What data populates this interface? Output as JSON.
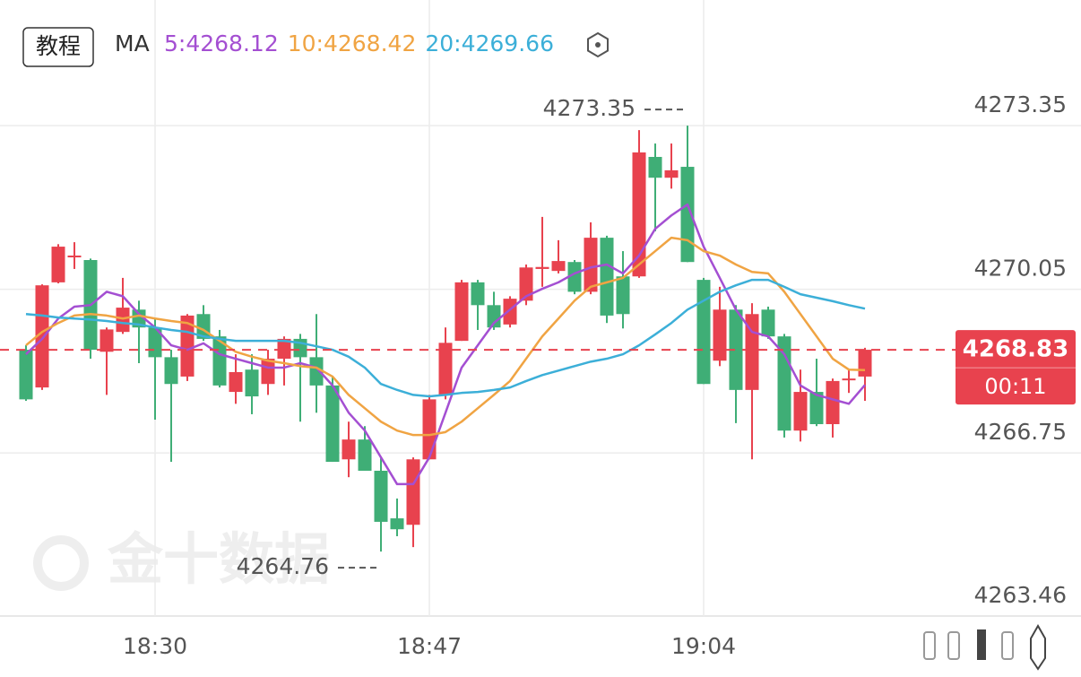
{
  "chart_data": {
    "type": "candlestick",
    "button": "教程",
    "indicator": "MA",
    "watermark": "金十数据",
    "countdown": "00:11",
    "up_color": "#e8424e",
    "down_color": "#3fae76",
    "categories": [
      null,
      null,
      null,
      null,
      null,
      null,
      null,
      null,
      "18:30",
      null,
      null,
      null,
      null,
      null,
      null,
      null,
      null,
      null,
      null,
      null,
      null,
      null,
      null,
      null,
      null,
      "18:47",
      null,
      null,
      null,
      null,
      null,
      null,
      null,
      null,
      null,
      null,
      null,
      null,
      null,
      null,
      null,
      null,
      "19:04",
      null,
      null,
      null,
      null,
      null,
      null,
      null,
      null,
      null,
      null
    ],
    "open": [
      4268.83,
      4268.07,
      4270.19,
      4270.7,
      4270.64,
      4268.79,
      4269.19,
      4269.64,
      4269.28,
      4268.68,
      4268.29,
      4269.55,
      4269.1,
      4267.98,
      4268.43,
      4268.14,
      4268.65,
      4269.05,
      4268.68,
      4268.11,
      4266.62,
      4267.02,
      4266.39,
      4265.43,
      4265.3,
      4266.62,
      4267.92,
      4269.01,
      4270.19,
      4269.73,
      4269.34,
      4269.82,
      4270.46,
      4270.42,
      4270.6,
      4270.0,
      4271.09,
      4270.31,
      4270.31,
      4272.72,
      4272.3,
      4272.52,
      4270.24,
      4268.61,
      4269.64,
      4268.02,
      4269.64,
      4269.1,
      4267.2,
      4267.98,
      4267.33,
      4268.23,
      4268.29
    ],
    "high": [
      4268.92,
      4270.15,
      4270.96,
      4271.0,
      4270.67,
      4269.28,
      4270.28,
      4269.82,
      4269.46,
      4268.83,
      4269.55,
      4269.73,
      4269.23,
      4268.74,
      4268.74,
      4268.83,
      4269.1,
      4269.15,
      4269.55,
      4268.29,
      4267.38,
      4267.29,
      4266.66,
      4265.83,
      4266.66,
      4267.92,
      4269.28,
      4270.24,
      4270.24,
      4270.0,
      4269.91,
      4270.55,
      4271.51,
      4271.04,
      4270.64,
      4271.4,
      4271.13,
      4270.82,
      4273.26,
      4272.99,
      4272.99,
      4273.35,
      4270.28,
      4270.1,
      4269.73,
      4269.77,
      4269.7,
      4269.15,
      4268.43,
      4268.65,
      4268.25,
      4268.43,
      4268.87
    ],
    "low": [
      4267.8,
      4268.02,
      4270.17,
      4270.46,
      4268.65,
      4267.92,
      4269.15,
      4268.56,
      4267.42,
      4266.57,
      4268.2,
      4269.01,
      4268.07,
      4267.74,
      4267.53,
      4267.92,
      4268.11,
      4267.38,
      4267.56,
      4266.57,
      4266.26,
      4266.39,
      4264.76,
      4265.07,
      4264.85,
      4266.62,
      4267.83,
      4269.01,
      4269.23,
      4269.23,
      4269.28,
      4269.73,
      4270.1,
      4270.37,
      4269.95,
      4269.95,
      4269.37,
      4269.26,
      4270.28,
      4271.22,
      4272.08,
      4270.6,
      4268.14,
      4268.5,
      4267.35,
      4266.62,
      4269.05,
      4267.06,
      4266.98,
      4267.29,
      4267.06,
      4267.96,
      4267.8
    ],
    "close": [
      4267.83,
      4270.13,
      4270.91,
      4270.73,
      4268.83,
      4269.24,
      4269.68,
      4269.28,
      4268.68,
      4268.14,
      4269.52,
      4269.05,
      4268.11,
      4268.38,
      4267.89,
      4268.65,
      4269.05,
      4268.68,
      4268.11,
      4266.57,
      4267.02,
      4266.39,
      4265.36,
      4265.21,
      4266.62,
      4267.83,
      4268.97,
      4270.19,
      4269.73,
      4269.28,
      4269.86,
      4270.49,
      4270.5,
      4270.62,
      4270.0,
      4271.09,
      4269.52,
      4269.55,
      4272.81,
      4272.3,
      4272.45,
      4270.6,
      4268.14,
      4269.64,
      4268.02,
      4269.55,
      4269.1,
      4267.2,
      4267.98,
      4267.33,
      4268.2,
      4268.25,
      4268.83
    ],
    "series": [
      {
        "name": "5:",
        "color": "#a44fd2",
        "values": [
          4268.74,
          4269.05,
          4269.46,
          4269.7,
          4269.73,
          4270.0,
          4269.91,
          4269.55,
          4269.28,
          4268.92,
          4268.83,
          4268.96,
          4268.74,
          4268.65,
          4268.56,
          4268.47,
          4268.47,
          4268.56,
          4268.47,
          4268.11,
          4267.56,
          4267.2,
          4266.66,
          4266.12,
          4266.12,
          4266.66,
          4267.56,
          4268.47,
          4268.92,
          4269.37,
          4269.64,
          4269.91,
          4270.06,
          4270.19,
          4270.37,
          4270.49,
          4270.55,
          4270.37,
          4270.73,
          4271.27,
          4271.54,
          4271.76,
          4270.91,
          4270.28,
          4269.64,
          4269.19,
          4269.1,
          4268.74,
          4268.11,
          4267.92,
          4267.83,
          4267.74,
          4268.12
        ]
      },
      {
        "name": "10:",
        "color": "#f0a443",
        "values": [
          4268.92,
          4269.19,
          4269.37,
          4269.52,
          4269.55,
          4269.52,
          4269.46,
          4269.52,
          4269.46,
          4269.41,
          4269.37,
          4269.23,
          4269.01,
          4268.79,
          4268.69,
          4268.61,
          4268.56,
          4268.5,
          4268.47,
          4268.29,
          4267.92,
          4267.65,
          4267.38,
          4267.2,
          4267.11,
          4267.11,
          4267.17,
          4267.38,
          4267.65,
          4267.92,
          4268.2,
          4268.65,
          4269.1,
          4269.46,
          4269.82,
          4270.1,
          4270.19,
          4270.28,
          4270.55,
          4270.82,
          4271.09,
          4271.04,
          4270.82,
          4270.73,
          4270.55,
          4270.4,
          4270.37,
          4270.0,
          4269.55,
          4269.1,
          4268.65,
          4268.43,
          4268.42
        ]
      },
      {
        "name": "20:",
        "color": "#3cafd8",
        "values": [
          4269.55,
          4269.52,
          4269.48,
          4269.46,
          4269.44,
          4269.41,
          4269.37,
          4269.34,
          4269.28,
          4269.23,
          4269.19,
          4269.1,
          4269.05,
          4269.01,
          4269.01,
          4269.01,
          4269.01,
          4268.97,
          4268.9,
          4268.83,
          4268.69,
          4268.47,
          4268.14,
          4268.02,
          4267.92,
          4267.89,
          4267.92,
          4267.96,
          4267.98,
          4268.02,
          4268.07,
          4268.2,
          4268.32,
          4268.41,
          4268.5,
          4268.59,
          4268.65,
          4268.74,
          4268.92,
          4269.14,
          4269.37,
          4269.64,
          4269.82,
          4270.0,
          4270.13,
          4270.24,
          4270.24,
          4270.1,
          4269.95,
          4269.88,
          4269.81,
          4269.73,
          4269.66
        ]
      }
    ],
    "ylim": [
      4263.46,
      4275.74
    ],
    "yticks": [
      4273.35,
      4270.05,
      4266.75,
      4263.46
    ],
    "grid": true
  }
}
